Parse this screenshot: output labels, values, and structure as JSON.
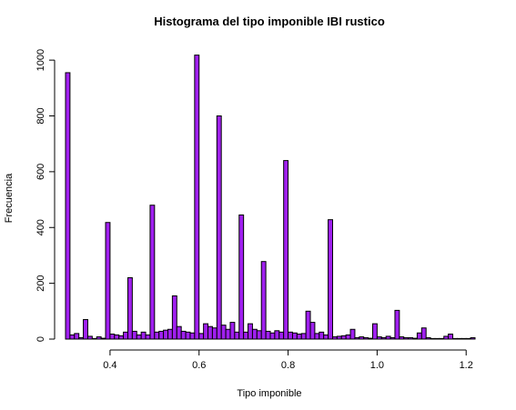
{
  "chart_data": {
    "type": "bar",
    "title": "Histograma del tipo imponible IBI rustico",
    "xlabel": "Tipo imponible",
    "ylabel": "Frecuencia",
    "bar_color": "#a020f0",
    "bin_width": 0.01,
    "xlim": [
      0.3,
      1.22
    ],
    "ylim": [
      0,
      1020
    ],
    "x_ticks": [
      0.4,
      0.6,
      0.8,
      1.0,
      1.2
    ],
    "x_tick_labels": [
      "0.4",
      "0.6",
      "0.8",
      "1.0",
      "1.2"
    ],
    "y_ticks": [
      0,
      200,
      400,
      600,
      800,
      1000
    ],
    "y_tick_labels": [
      "0",
      "200",
      "400",
      "600",
      "800",
      "1000"
    ],
    "bins_start": [
      0.3,
      0.31,
      0.32,
      0.33,
      0.34,
      0.35,
      0.36,
      0.37,
      0.38,
      0.39,
      0.4,
      0.41,
      0.42,
      0.43,
      0.44,
      0.45,
      0.46,
      0.47,
      0.48,
      0.49,
      0.5,
      0.51,
      0.52,
      0.53,
      0.54,
      0.55,
      0.56,
      0.57,
      0.58,
      0.59,
      0.6,
      0.61,
      0.62,
      0.63,
      0.64,
      0.65,
      0.66,
      0.67,
      0.68,
      0.69,
      0.7,
      0.71,
      0.72,
      0.73,
      0.74,
      0.75,
      0.76,
      0.77,
      0.78,
      0.79,
      0.8,
      0.81,
      0.82,
      0.83,
      0.84,
      0.85,
      0.86,
      0.87,
      0.88,
      0.89,
      0.9,
      0.91,
      0.92,
      0.93,
      0.94,
      0.95,
      0.96,
      0.97,
      0.98,
      0.99,
      1.0,
      1.01,
      1.02,
      1.03,
      1.04,
      1.05,
      1.06,
      1.07,
      1.08,
      1.09,
      1.1,
      1.11,
      1.12,
      1.13,
      1.14,
      1.15,
      1.16,
      1.17,
      1.18,
      1.19,
      1.2,
      1.21
    ],
    "counts": [
      955,
      15,
      20,
      5,
      70,
      10,
      2,
      8,
      3,
      418,
      18,
      15,
      12,
      25,
      220,
      28,
      15,
      25,
      15,
      480,
      25,
      28,
      32,
      35,
      155,
      45,
      28,
      25,
      22,
      1018,
      20,
      55,
      45,
      40,
      800,
      50,
      35,
      60,
      25,
      445,
      25,
      55,
      35,
      30,
      278,
      28,
      22,
      30,
      25,
      640,
      25,
      22,
      18,
      20,
      100,
      60,
      20,
      25,
      15,
      428,
      8,
      10,
      12,
      15,
      35,
      5,
      8,
      5,
      3,
      55,
      8,
      5,
      10,
      5,
      103,
      8,
      5,
      5,
      3,
      22,
      40,
      5,
      2,
      2,
      2,
      10,
      18,
      2,
      2,
      2,
      2,
      5
    ]
  }
}
